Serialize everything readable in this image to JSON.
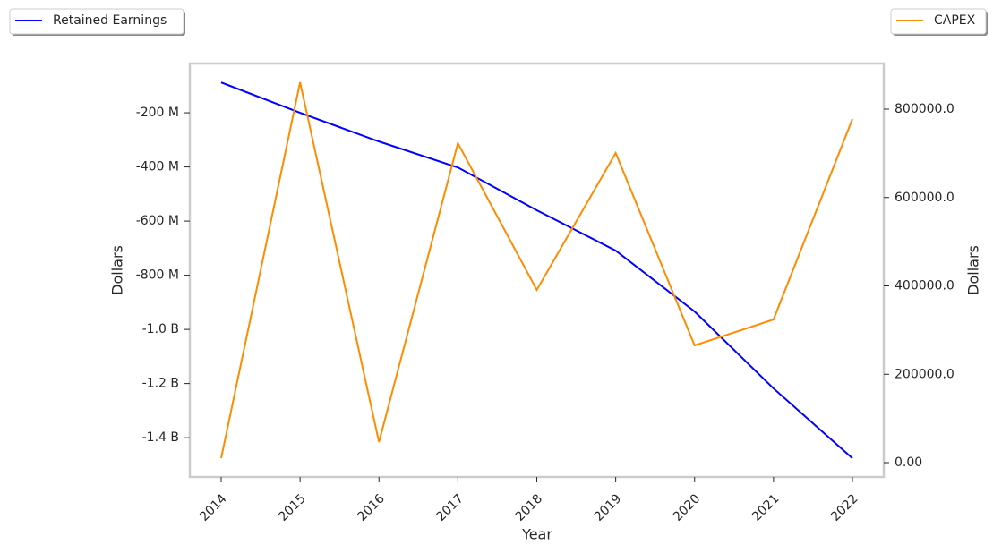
{
  "chart_data": {
    "type": "line",
    "x_label": "Year",
    "y_label": "Dollars",
    "y2_label": "Dollars",
    "categories": [
      "2014",
      "2015",
      "2016",
      "2017",
      "2018",
      "2019",
      "2020",
      "2021",
      "2022"
    ],
    "series": [
      {
        "name": "Retained Earnings",
        "color": "#0000ff",
        "axis": "y",
        "values": [
          -88000000,
          -200000000,
          -306000000,
          -402000000,
          -560000000,
          -709000000,
          -934000000,
          -1218000000,
          -1476000000
        ]
      },
      {
        "name": "CAPEX",
        "color": "#ff8c00",
        "axis": "y2",
        "values": [
          10100,
          860800,
          46600,
          723000,
          391000,
          700700,
          265300,
          324000,
          777700
        ]
      }
    ],
    "ylim": [
      -1545000000,
      -18000000
    ],
    "yticks": [
      {
        "value": -200000000,
        "label": "-200 M"
      },
      {
        "value": -400000000,
        "label": "-400 M"
      },
      {
        "value": -600000000,
        "label": "-600 M"
      },
      {
        "value": -800000000,
        "label": "-800 M"
      },
      {
        "value": -1000000000,
        "label": "-1.0 B"
      },
      {
        "value": -1200000000,
        "label": "-1.2 B"
      },
      {
        "value": -1400000000,
        "label": "-1.4 B"
      }
    ],
    "y2lim": [
      -32400,
      903300
    ],
    "y2ticks": [
      {
        "value": 0,
        "label": "0.00"
      },
      {
        "value": 200000,
        "label": "200000.0"
      },
      {
        "value": 400000,
        "label": "400000.0"
      },
      {
        "value": 600000,
        "label": "600000.0"
      },
      {
        "value": 800000,
        "label": "800000.0"
      }
    ],
    "grid": false
  }
}
